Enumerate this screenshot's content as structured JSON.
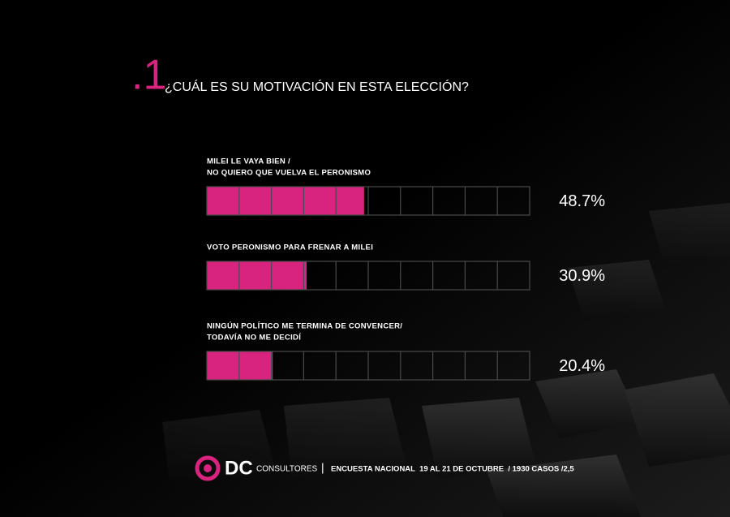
{
  "chart_data": {
    "type": "hbar-segmented",
    "title_number": ".1",
    "title": "¿CUÁL ES SU MOTIVACIÓN EN ESTA ELECCIÓN?",
    "categories": [
      [
        "MILEI LE VAYA BIEN /",
        "NO QUIERO QUE VUELVA EL PERONISMO"
      ],
      [
        "VOTO PERONISMO PARA FRENAR A MILEI"
      ],
      [
        "NINGÚN POLÍTICO ME TERMINA DE CONVENCER/",
        "TODAVÍA NO ME DECIDÍ"
      ]
    ],
    "values": [
      48.7,
      30.9,
      20.4
    ],
    "value_labels": [
      "48.7%",
      "30.9%",
      "20.4%"
    ],
    "color": "#d8247e",
    "xlim": [
      0,
      100
    ],
    "segments": 10
  },
  "footer": {
    "brand": "DC",
    "brand_sub": "CONSULTORES",
    "separator": "|",
    "source": "ENCUESTA NACIONAL  19 AL 21 DE OCTUBRE  / 1930 CASOS /2,5"
  }
}
